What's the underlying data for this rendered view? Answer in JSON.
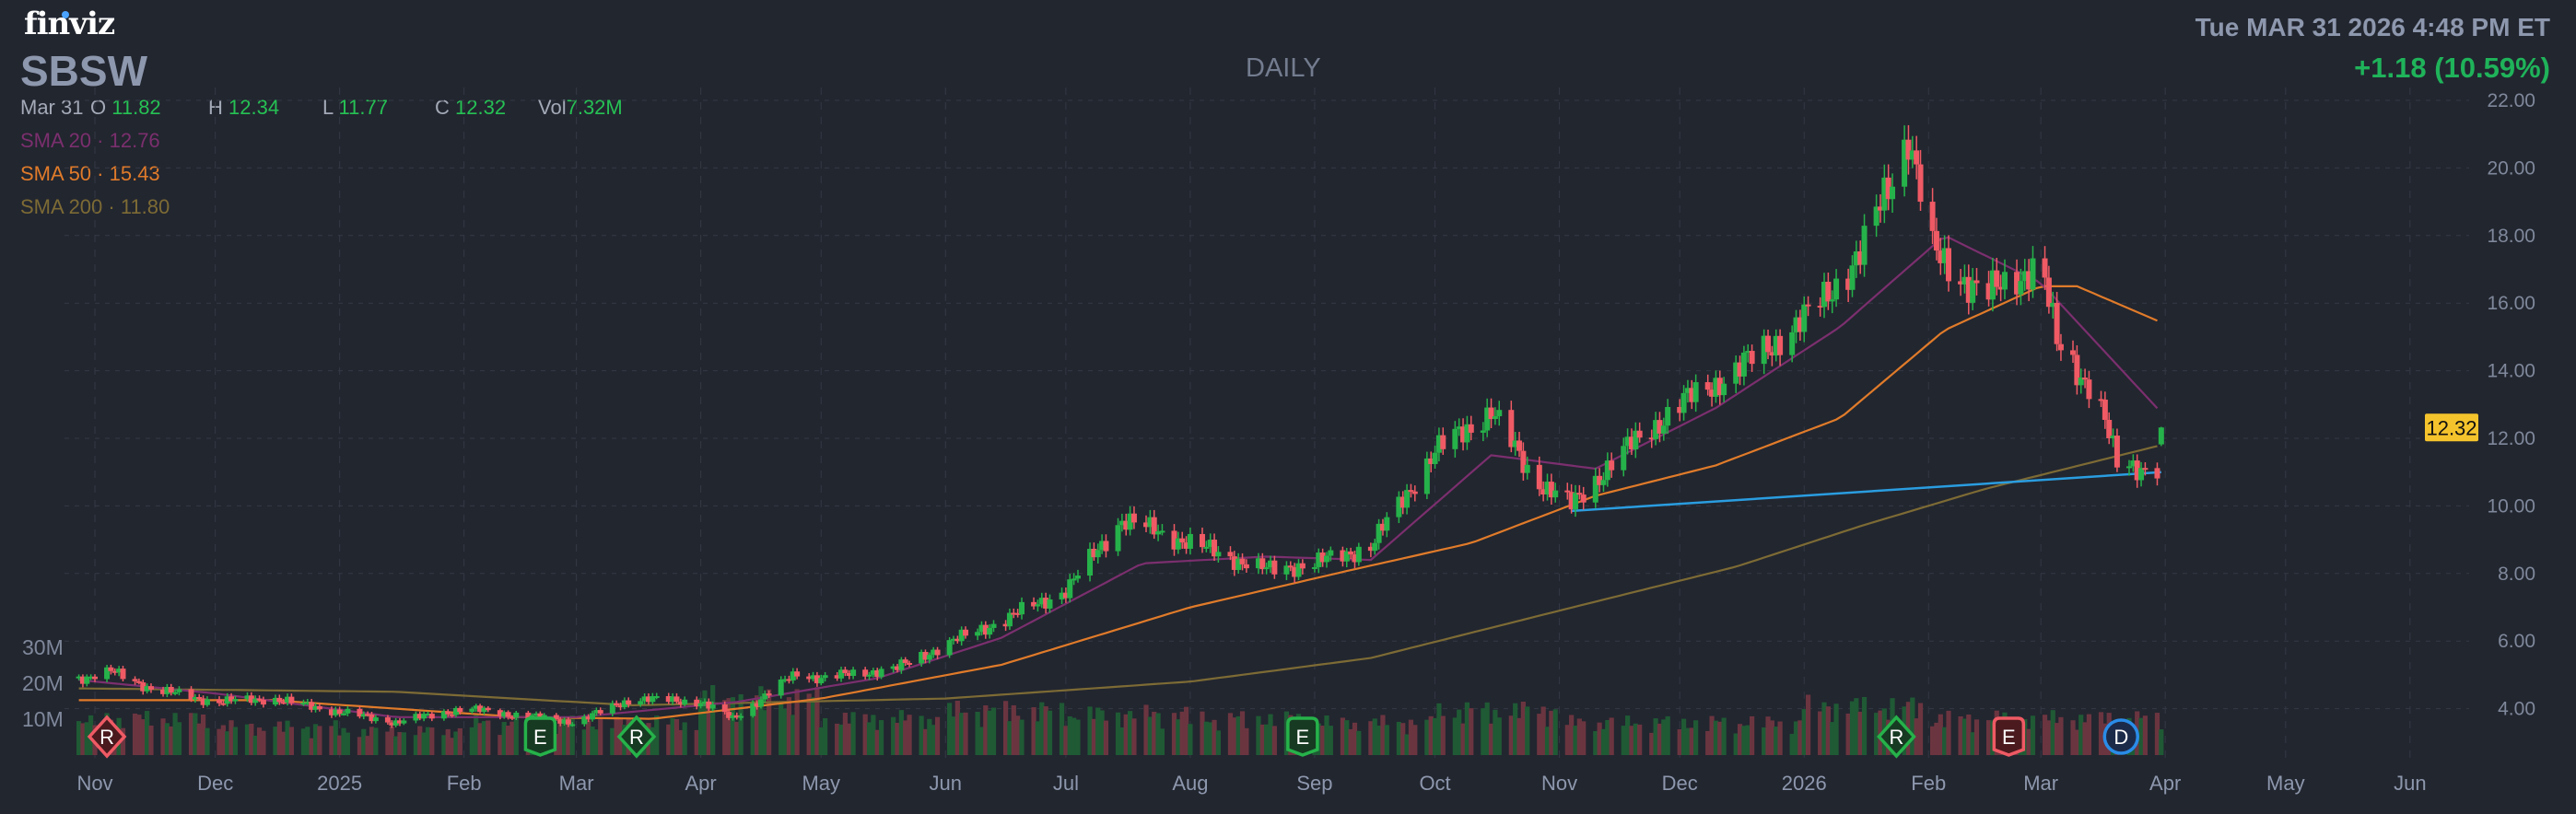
{
  "header": {
    "logo": "finviz",
    "ticker": "SBSW",
    "timeframe": "DAILY",
    "datetime": "Tue MAR 31 2026 4:48 PM ET",
    "change": "+1.18 (10.59%)"
  },
  "ohlc": {
    "date": "Mar 31",
    "open_label": "O",
    "open": "11.82",
    "high_label": "H",
    "high": "12.34",
    "low_label": "L",
    "low": "11.77",
    "close_label": "C",
    "close": "12.32",
    "vol_label": "Vol",
    "volume": "7.32M"
  },
  "indicators": [
    {
      "label": "SMA 20",
      "value": "12.76",
      "color": "#7b2f6e"
    },
    {
      "label": "SMA 50",
      "value": "15.43",
      "color": "#e07b2a"
    },
    {
      "label": "SMA 200",
      "value": "11.80",
      "color": "#7d6b35"
    }
  ],
  "colors": {
    "up": "#26b24a",
    "down": "#ef5a64",
    "up_volume": "#1f5a35",
    "down_volume": "#6b3540",
    "trendline": "#2a9de0",
    "last_price_badge": "#f5c42c",
    "background": "#22262f"
  },
  "chart_data": {
    "type": "candlestick",
    "title": "",
    "price_axis": {
      "ticks": [
        "22.00",
        "20.00",
        "18.00",
        "16.00",
        "14.00",
        "12.00",
        "10.00",
        "8.00",
        "6.00",
        "4.00"
      ],
      "range": [
        3,
        22.5
      ],
      "side": "right"
    },
    "volume_axis": {
      "ticks": [
        "30M",
        "20M",
        "10M"
      ]
    },
    "x_ticks": [
      {
        "label": "Nov",
        "date": "2024-11-01"
      },
      {
        "label": "Dec",
        "date": "2024-12-01"
      },
      {
        "label": "2025",
        "date": "2025-01-01"
      },
      {
        "label": "Feb",
        "date": "2025-02-01"
      },
      {
        "label": "Mar",
        "date": "2025-03-01"
      },
      {
        "label": "Apr",
        "date": "2025-04-01"
      },
      {
        "label": "May",
        "date": "2025-05-01"
      },
      {
        "label": "Jun",
        "date": "2025-06-01"
      },
      {
        "label": "Jul",
        "date": "2025-07-01"
      },
      {
        "label": "Aug",
        "date": "2025-08-01"
      },
      {
        "label": "Sep",
        "date": "2025-09-01"
      },
      {
        "label": "Oct",
        "date": "2025-10-01"
      },
      {
        "label": "Nov",
        "date": "2025-11-01"
      },
      {
        "label": "Dec",
        "date": "2025-12-01"
      },
      {
        "label": "2026",
        "date": "2026-01-01"
      },
      {
        "label": "Feb",
        "date": "2026-02-01"
      },
      {
        "label": "Mar",
        "date": "2026-03-01"
      },
      {
        "label": "Apr",
        "date": "2026-04-01"
      },
      {
        "label": "May",
        "date": "2026-05-01"
      },
      {
        "label": "Jun",
        "date": "2026-06-01"
      }
    ],
    "grid": true,
    "close_keypoints": [
      [
        "2024-10-28",
        4.9
      ],
      [
        "2024-11-05",
        5.1
      ],
      [
        "2024-11-15",
        4.6
      ],
      [
        "2024-12-01",
        4.2
      ],
      [
        "2024-12-15",
        4.3
      ],
      [
        "2025-01-01",
        3.9
      ],
      [
        "2025-01-15",
        3.6
      ],
      [
        "2025-02-01",
        4.0
      ],
      [
        "2025-02-15",
        3.8
      ],
      [
        "2025-03-01",
        3.6
      ],
      [
        "2025-03-15",
        4.3
      ],
      [
        "2025-04-01",
        4.2
      ],
      [
        "2025-04-09",
        3.7
      ],
      [
        "2025-04-25",
        5.05
      ],
      [
        "2025-05-01",
        4.9
      ],
      [
        "2025-05-20",
        5.2
      ],
      [
        "2025-06-01",
        5.9
      ],
      [
        "2025-06-15",
        6.6
      ],
      [
        "2025-07-01",
        7.5
      ],
      [
        "2025-07-15",
        9.6
      ],
      [
        "2025-08-01",
        8.9
      ],
      [
        "2025-08-20",
        8.1
      ],
      [
        "2025-09-01",
        8.3
      ],
      [
        "2025-09-15",
        8.8
      ],
      [
        "2025-10-01",
        11.6
      ],
      [
        "2025-10-15",
        12.8
      ],
      [
        "2025-10-25",
        10.9
      ],
      [
        "2025-11-04",
        10.0
      ],
      [
        "2025-11-15",
        11.4
      ],
      [
        "2025-12-01",
        13.0
      ],
      [
        "2025-12-15",
        14.0
      ],
      [
        "2026-01-01",
        15.5
      ],
      [
        "2026-01-15",
        17.4
      ],
      [
        "2026-01-27",
        21.0
      ],
      [
        "2026-02-02",
        17.5
      ],
      [
        "2026-02-15",
        16.2
      ],
      [
        "2026-03-01",
        17.2
      ],
      [
        "2026-03-05",
        14.8
      ],
      [
        "2026-03-15",
        13.3
      ],
      [
        "2026-03-20",
        11.2
      ],
      [
        "2026-03-30",
        11.14
      ],
      [
        "2026-03-31",
        12.32
      ]
    ],
    "sma20_keypoints": [
      [
        "2024-10-28",
        4.85
      ],
      [
        "2024-12-01",
        4.45
      ],
      [
        "2025-01-15",
        3.75
      ],
      [
        "2025-03-01",
        3.75
      ],
      [
        "2025-04-10",
        4.2
      ],
      [
        "2025-05-15",
        4.9
      ],
      [
        "2025-06-15",
        6.1
      ],
      [
        "2025-07-20",
        8.3
      ],
      [
        "2025-08-20",
        8.5
      ],
      [
        "2025-09-15",
        8.4
      ],
      [
        "2025-10-15",
        11.5
      ],
      [
        "2025-11-10",
        11.1
      ],
      [
        "2025-12-10",
        12.9
      ],
      [
        "2026-01-10",
        15.3
      ],
      [
        "2026-02-05",
        18.0
      ],
      [
        "2026-03-01",
        16.6
      ],
      [
        "2026-03-31",
        12.76
      ]
    ],
    "sma50_keypoints": [
      [
        "2024-10-28",
        4.25
      ],
      [
        "2024-12-15",
        4.25
      ],
      [
        "2025-02-15",
        3.75
      ],
      [
        "2025-03-20",
        3.7
      ],
      [
        "2025-05-01",
        4.3
      ],
      [
        "2025-06-15",
        5.3
      ],
      [
        "2025-08-01",
        7.0
      ],
      [
        "2025-09-10",
        8.1
      ],
      [
        "2025-10-10",
        8.9
      ],
      [
        "2025-11-10",
        10.3
      ],
      [
        "2025-12-10",
        11.2
      ],
      [
        "2026-01-10",
        12.6
      ],
      [
        "2026-02-05",
        15.2
      ],
      [
        "2026-03-01",
        16.5
      ],
      [
        "2026-03-10",
        16.5
      ],
      [
        "2026-03-31",
        15.43
      ]
    ],
    "sma200_keypoints": [
      [
        "2024-10-28",
        4.6
      ],
      [
        "2025-01-15",
        4.5
      ],
      [
        "2025-03-15",
        4.1
      ],
      [
        "2025-06-01",
        4.3
      ],
      [
        "2025-08-01",
        4.8
      ],
      [
        "2025-09-15",
        5.5
      ],
      [
        "2025-11-01",
        6.9
      ],
      [
        "2025-12-15",
        8.2
      ],
      [
        "2026-01-15",
        9.4
      ],
      [
        "2026-02-15",
        10.5
      ],
      [
        "2026-03-31",
        11.8
      ]
    ],
    "trendline": [
      [
        "2025-11-04",
        9.85
      ],
      [
        "2026-03-31",
        11.0
      ]
    ],
    "last_price": "12.32",
    "volume_monthly_avg_millions": [
      [
        "2024-11",
        9
      ],
      [
        "2024-12",
        7
      ],
      [
        "2025-01",
        6
      ],
      [
        "2025-02",
        8
      ],
      [
        "2025-03",
        8
      ],
      [
        "2025-04",
        14
      ],
      [
        "2025-05",
        9
      ],
      [
        "2025-06",
        11
      ],
      [
        "2025-07",
        10
      ],
      [
        "2025-08",
        9
      ],
      [
        "2025-09",
        8
      ],
      [
        "2025-10",
        11
      ],
      [
        "2025-11",
        8
      ],
      [
        "2025-12",
        8
      ],
      [
        "2026-01",
        12
      ],
      [
        "2026-02",
        9
      ],
      [
        "2026-03",
        9
      ]
    ],
    "events": [
      {
        "label": "R",
        "date": "2024-11-04",
        "shape": "diamond",
        "color": "#ef5a64"
      },
      {
        "label": "E",
        "date": "2025-02-20",
        "shape": "shield",
        "color": "#26b24a"
      },
      {
        "label": "R",
        "date": "2025-03-16",
        "shape": "diamond",
        "color": "#26b24a"
      },
      {
        "label": "E",
        "date": "2025-08-29",
        "shape": "shield",
        "color": "#26b24a"
      },
      {
        "label": "R",
        "date": "2026-01-24",
        "shape": "diamond",
        "color": "#26b24a"
      },
      {
        "label": "E",
        "date": "2026-02-21",
        "shape": "shield",
        "color": "#ef5a64"
      },
      {
        "label": "D",
        "date": "2026-03-21",
        "shape": "circle",
        "color": "#2a8ce8"
      }
    ]
  }
}
